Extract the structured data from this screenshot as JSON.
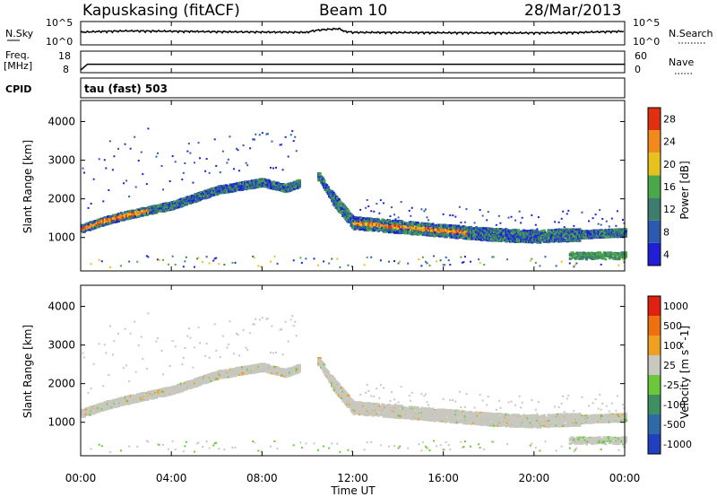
{
  "header": {
    "title": "Kapuskasing (fitACF)",
    "beam": "Beam 10",
    "date": "28/Mar/2013"
  },
  "noise_panel": {
    "left_label": "N.Sky",
    "left_ticks": [
      "10^5",
      "10^0"
    ],
    "right_label": "N.Search",
    "right_ticks": [
      "10^5",
      "10^0"
    ]
  },
  "freq_panel": {
    "left_label_1": "Freq.",
    "left_label_2": "[MHz]",
    "left_ticks": [
      "18",
      "8"
    ],
    "right_label": "Nave",
    "right_ticks": [
      "60",
      "0"
    ]
  },
  "cpid": {
    "label": "CPID",
    "value": "tau (fast) 503"
  },
  "x_axis": {
    "ticks": [
      "00:00",
      "04:00",
      "08:00",
      "12:00",
      "16:00",
      "20:00",
      "00:00"
    ],
    "label": "Time UT"
  },
  "power_panel": {
    "ylabel": "Slant Range [km]",
    "yticks": [
      "4000",
      "3000",
      "2000",
      "1000"
    ],
    "colorbar_label": "Power [dB]",
    "colorbar_ticks": [
      "28",
      "24",
      "20",
      "16",
      "12",
      "8",
      "4"
    ],
    "colors": [
      "#1f1fd6",
      "#2d5ab0",
      "#3d7d6d",
      "#4aa84a",
      "#e7c21c",
      "#f08a1a",
      "#e03010"
    ]
  },
  "velocity_panel": {
    "ylabel": "Slant Range [km]",
    "yticks": [
      "4000",
      "3000",
      "2000",
      "1000"
    ],
    "colorbar_label": "Velocity [m s^-1]",
    "colorbar_ticks": [
      "1000",
      "500",
      "100",
      "25",
      "-25",
      "-100",
      "-500",
      "-1000"
    ],
    "colors": [
      "#2040c0",
      "#2f6aa8",
      "#3f9060",
      "#6bc83a",
      "#c8c8c0",
      "#f0a020",
      "#f07010",
      "#e02010"
    ]
  },
  "chart_data": [
    {
      "type": "line",
      "title": "N.Sky / N.Search",
      "x_range_hours": [
        0,
        24
      ],
      "y_scale": "log",
      "ylim": [
        1,
        100000
      ],
      "series": [
        {
          "x": [
            0,
            0.5,
            2,
            4,
            6,
            8,
            10,
            11.4,
            11.6,
            12,
            14,
            16,
            18,
            20,
            22,
            24
          ],
          "y": [
            1000,
            1500,
            2500,
            2000,
            1500,
            1200,
            1000,
            10000,
            2000,
            1000,
            900,
            800,
            700,
            700,
            900,
            2000
          ]
        }
      ]
    },
    {
      "type": "line",
      "title": "Freq. / Nave",
      "x_range_hours": [
        0,
        24
      ],
      "ylim": [
        8,
        18
      ],
      "series": [
        {
          "x": [
            0,
            0.3,
            24
          ],
          "y": [
            8,
            12,
            12
          ]
        }
      ]
    },
    {
      "type": "heatmap",
      "title": "Power",
      "ylabel": "Slant Range [km]",
      "xlabel": "Time UT",
      "x_range_hours": [
        0,
        24
      ],
      "ylim": [
        180,
        4500
      ],
      "colorbar_ticks": [
        4,
        8,
        12,
        16,
        20,
        24,
        28
      ],
      "main_echo_band_km": {
        "x": [
          0,
          1,
          2,
          4,
          6,
          8,
          9,
          10.5,
          11,
          12,
          14,
          16,
          18,
          20,
          22,
          24
        ],
        "y": [
          1250,
          1450,
          1600,
          1850,
          2250,
          2450,
          2300,
          2600,
          2100,
          1400,
          1300,
          1200,
          1100,
          1050,
          1100,
          1150
        ]
      },
      "near_range_echo": {
        "x": [
          21.5,
          24
        ],
        "y": [
          550,
          550
        ]
      }
    },
    {
      "type": "heatmap",
      "title": "Velocity",
      "ylabel": "Slant Range [km]",
      "xlabel": "Time UT",
      "x_range_hours": [
        0,
        24
      ],
      "ylim": [
        180,
        4500
      ],
      "colorbar_ticks": [
        1000,
        500,
        100,
        25,
        -25,
        -100,
        -500,
        -1000
      ]
    }
  ]
}
